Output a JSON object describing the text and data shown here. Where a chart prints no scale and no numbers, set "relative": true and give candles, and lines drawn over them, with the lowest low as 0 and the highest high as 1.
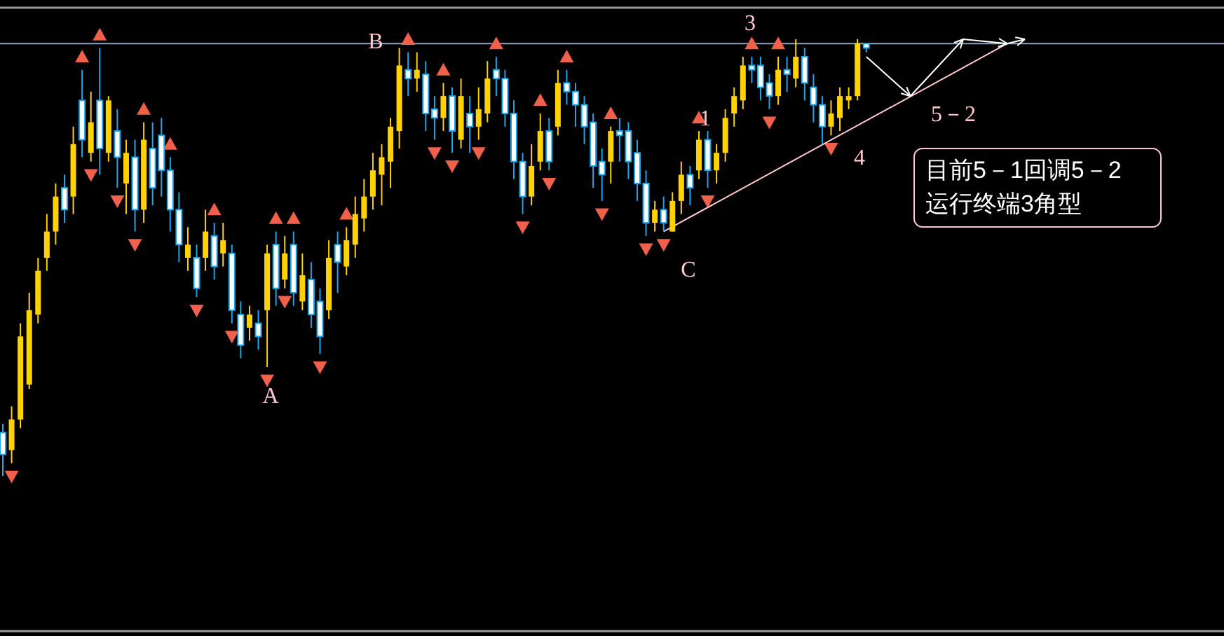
{
  "chart_data": {
    "type": "candlestick",
    "relative": true,
    "categories": [
      null,
      null,
      null,
      null,
      null,
      null,
      null,
      null,
      null,
      null,
      null,
      null,
      null,
      null,
      null,
      null,
      null,
      null,
      null,
      null,
      null,
      null,
      null,
      null,
      null,
      null,
      null,
      null,
      null,
      null,
      null,
      null,
      null,
      null,
      null,
      null,
      null,
      null,
      null,
      null,
      null,
      null,
      null,
      null,
      null,
      null,
      null,
      null,
      null,
      null,
      null,
      null,
      null,
      null,
      null,
      null,
      null,
      null,
      null,
      null,
      null,
      null,
      null,
      null,
      null,
      null,
      null,
      null,
      null,
      null,
      null,
      null,
      null,
      null,
      null,
      null,
      null,
      null,
      null,
      null,
      null,
      null,
      null,
      null,
      null,
      null,
      null,
      null,
      null,
      null,
      null,
      null,
      null,
      null,
      null,
      null,
      null,
      null,
      null,
      null,
      null,
      null,
      null,
      null,
      null,
      null,
      null,
      null,
      null,
      null,
      null,
      null,
      null,
      null,
      null,
      null,
      null
    ],
    "ohlc": [
      [
        0.1,
        0.12,
        0.0,
        0.05
      ],
      [
        0.06,
        0.16,
        0.03,
        0.13
      ],
      [
        0.13,
        0.35,
        0.11,
        0.32
      ],
      [
        0.21,
        0.42,
        0.2,
        0.38
      ],
      [
        0.37,
        0.5,
        0.35,
        0.47
      ],
      [
        0.5,
        0.6,
        0.47,
        0.56
      ],
      [
        0.56,
        0.67,
        0.53,
        0.64
      ],
      [
        0.66,
        0.69,
        0.58,
        0.61
      ],
      [
        0.64,
        0.8,
        0.6,
        0.76
      ],
      [
        0.86,
        0.93,
        0.73,
        0.77
      ],
      [
        0.74,
        0.88,
        0.72,
        0.81
      ],
      [
        0.86,
        0.98,
        0.69,
        0.75
      ],
      [
        0.74,
        0.87,
        0.72,
        0.86
      ],
      [
        0.79,
        0.84,
        0.66,
        0.73
      ],
      [
        0.67,
        0.77,
        0.6,
        0.74
      ],
      [
        0.73,
        0.77,
        0.56,
        0.61
      ],
      [
        0.61,
        0.81,
        0.58,
        0.77
      ],
      [
        0.75,
        0.81,
        0.62,
        0.66
      ],
      [
        0.78,
        0.82,
        0.64,
        0.7
      ],
      [
        0.7,
        0.73,
        0.56,
        0.61
      ],
      [
        0.61,
        0.65,
        0.49,
        0.53
      ],
      [
        0.5,
        0.57,
        0.47,
        0.53
      ],
      [
        0.5,
        0.53,
        0.41,
        0.43
      ],
      [
        0.5,
        0.61,
        0.47,
        0.56
      ],
      [
        0.55,
        0.58,
        0.45,
        0.48
      ],
      [
        0.51,
        0.58,
        0.48,
        0.54
      ],
      [
        0.51,
        0.53,
        0.35,
        0.38
      ],
      [
        0.37,
        0.4,
        0.27,
        0.3
      ],
      [
        0.34,
        0.39,
        0.31,
        0.37
      ],
      [
        0.35,
        0.38,
        0.29,
        0.32
      ],
      [
        0.38,
        0.53,
        0.25,
        0.51
      ],
      [
        0.53,
        0.56,
        0.39,
        0.43
      ],
      [
        0.45,
        0.55,
        0.43,
        0.51
      ],
      [
        0.53,
        0.56,
        0.39,
        0.42
      ],
      [
        0.4,
        0.51,
        0.38,
        0.46
      ],
      [
        0.45,
        0.49,
        0.34,
        0.37
      ],
      [
        0.4,
        0.43,
        0.28,
        0.32
      ],
      [
        0.38,
        0.54,
        0.36,
        0.5
      ],
      [
        0.53,
        0.56,
        0.42,
        0.49
      ],
      [
        0.48,
        0.57,
        0.46,
        0.54
      ],
      [
        0.53,
        0.64,
        0.5,
        0.6
      ],
      [
        0.59,
        0.68,
        0.56,
        0.64
      ],
      [
        0.64,
        0.74,
        0.61,
        0.7
      ],
      [
        0.69,
        0.76,
        0.62,
        0.73
      ],
      [
        0.72,
        0.82,
        0.66,
        0.8
      ],
      [
        0.79,
        0.98,
        0.75,
        0.94
      ],
      [
        0.93,
        0.97,
        0.87,
        0.91
      ],
      [
        0.91,
        0.97,
        0.88,
        0.93
      ],
      [
        0.92,
        0.95,
        0.79,
        0.83
      ],
      [
        0.84,
        0.87,
        0.77,
        0.82
      ],
      [
        0.82,
        0.9,
        0.79,
        0.87
      ],
      [
        0.87,
        0.89,
        0.74,
        0.79
      ],
      [
        0.77,
        0.91,
        0.75,
        0.87
      ],
      [
        0.83,
        0.87,
        0.74,
        0.8
      ],
      [
        0.8,
        0.89,
        0.77,
        0.84
      ],
      [
        0.83,
        0.95,
        0.81,
        0.91
      ],
      [
        0.93,
        0.96,
        0.87,
        0.91
      ],
      [
        0.91,
        0.93,
        0.8,
        0.83
      ],
      [
        0.83,
        0.86,
        0.68,
        0.72
      ],
      [
        0.72,
        0.74,
        0.6,
        0.64
      ],
      [
        0.64,
        0.76,
        0.62,
        0.71
      ],
      [
        0.72,
        0.83,
        0.7,
        0.79
      ],
      [
        0.79,
        0.82,
        0.7,
        0.72
      ],
      [
        0.8,
        0.93,
        0.78,
        0.9
      ],
      [
        0.9,
        0.93,
        0.85,
        0.88
      ],
      [
        0.88,
        0.9,
        0.8,
        0.85
      ],
      [
        0.85,
        0.87,
        0.76,
        0.8
      ],
      [
        0.81,
        0.83,
        0.66,
        0.71
      ],
      [
        0.72,
        0.75,
        0.63,
        0.69
      ],
      [
        0.72,
        0.8,
        0.67,
        0.79
      ],
      [
        0.79,
        0.82,
        0.72,
        0.78
      ],
      [
        0.79,
        0.81,
        0.68,
        0.72
      ],
      [
        0.74,
        0.77,
        0.63,
        0.67
      ],
      [
        0.67,
        0.7,
        0.55,
        0.58
      ],
      [
        0.58,
        0.63,
        0.56,
        0.61
      ],
      [
        0.61,
        0.64,
        0.56,
        0.58
      ],
      [
        0.56,
        0.65,
        0.56,
        0.63
      ],
      [
        0.63,
        0.72,
        0.6,
        0.69
      ],
      [
        0.69,
        0.71,
        0.62,
        0.66
      ],
      [
        0.7,
        0.79,
        0.68,
        0.77
      ],
      [
        0.77,
        0.79,
        0.66,
        0.7
      ],
      [
        0.7,
        0.76,
        0.67,
        0.74
      ],
      [
        0.74,
        0.84,
        0.72,
        0.82
      ],
      [
        0.83,
        0.89,
        0.8,
        0.87
      ],
      [
        0.86,
        0.96,
        0.84,
        0.94
      ],
      [
        0.94,
        0.96,
        0.9,
        0.93
      ],
      [
        0.94,
        0.96,
        0.86,
        0.89
      ],
      [
        0.9,
        0.92,
        0.84,
        0.87
      ],
      [
        0.87,
        0.96,
        0.85,
        0.93
      ],
      [
        0.93,
        0.96,
        0.88,
        0.92
      ],
      [
        0.91,
        1.0,
        0.89,
        0.96
      ],
      [
        0.96,
        0.98,
        0.86,
        0.9
      ],
      [
        0.89,
        0.92,
        0.81,
        0.85
      ],
      [
        0.85,
        0.87,
        0.76,
        0.8
      ],
      [
        0.8,
        0.86,
        0.78,
        0.83
      ],
      [
        0.82,
        0.89,
        0.79,
        0.87
      ],
      [
        0.86,
        0.89,
        0.84,
        0.87
      ],
      [
        0.87,
        1.0,
        0.86,
        0.99
      ],
      [
        0.99,
        0.99,
        0.97,
        0.98
      ],
      null,
      null,
      null,
      null,
      null,
      null,
      null,
      null,
      null,
      null,
      null,
      null,
      null,
      null,
      null,
      null,
      null,
      null
    ],
    "series": [
      {
        "type": "scatter",
        "marker": "triangle",
        "color": "#f0604a",
        "values": [
          null,
          null,
          null,
          null,
          null,
          null,
          null,
          null,
          null,
          0.96,
          null,
          1.01,
          null,
          null,
          null,
          null,
          0.84,
          null,
          null,
          0.76,
          null,
          null,
          null,
          null,
          0.61,
          null,
          null,
          null,
          null,
          null,
          null,
          0.59,
          null,
          0.59,
          null,
          null,
          null,
          null,
          null,
          0.6,
          null,
          null,
          null,
          null,
          null,
          null,
          1.0,
          null,
          null,
          null,
          0.93,
          null,
          null,
          null,
          null,
          null,
          0.99,
          null,
          null,
          null,
          null,
          0.86,
          null,
          null,
          0.96,
          null,
          null,
          null,
          null,
          0.83,
          null,
          null,
          null,
          null,
          null,
          null,
          null,
          null,
          null,
          0.82,
          null,
          null,
          null,
          null,
          null,
          0.99,
          null,
          null,
          0.99,
          null,
          null,
          null,
          null,
          null,
          null,
          null,
          null,
          null,
          null,
          null,
          null,
          null,
          null,
          null,
          null,
          null,
          null,
          null,
          null,
          null,
          null,
          null,
          null,
          null,
          null,
          null,
          null
        ]
      },
      {
        "type": "scatter",
        "marker": "triangle-down",
        "color": "#f0604a",
        "values": [
          null,
          0.0,
          null,
          null,
          null,
          null,
          null,
          null,
          null,
          null,
          0.69,
          null,
          null,
          0.63,
          null,
          0.53,
          null,
          null,
          null,
          null,
          null,
          null,
          0.38,
          null,
          null,
          null,
          0.32,
          null,
          null,
          null,
          0.22,
          null,
          0.4,
          null,
          null,
          null,
          0.25,
          null,
          null,
          null,
          null,
          null,
          null,
          null,
          null,
          null,
          null,
          null,
          null,
          0.74,
          null,
          0.71,
          null,
          null,
          0.74,
          null,
          null,
          null,
          null,
          0.57,
          null,
          null,
          0.67,
          null,
          null,
          null,
          null,
          null,
          0.6,
          null,
          null,
          null,
          null,
          0.52,
          null,
          0.53,
          null,
          null,
          null,
          null,
          0.63,
          null,
          null,
          null,
          null,
          null,
          null,
          0.81,
          null,
          null,
          null,
          null,
          null,
          null,
          0.75,
          null,
          null,
          null,
          null,
          null,
          null,
          null,
          null,
          null,
          null,
          null,
          null,
          null,
          null,
          null,
          null,
          null,
          null,
          null,
          null,
          null,
          null
        ]
      },
      {
        "type": "line",
        "color": "#ffc8d0",
        "values": [
          null,
          null,
          null,
          null,
          null,
          null,
          null,
          null,
          null,
          null,
          null,
          null,
          null,
          null,
          null,
          null,
          null,
          null,
          null,
          null,
          null,
          null,
          null,
          null,
          null,
          null,
          null,
          null,
          null,
          null,
          null,
          null,
          null,
          null,
          null,
          null,
          null,
          null,
          null,
          null,
          null,
          null,
          null,
          null,
          null,
          null,
          null,
          null,
          null,
          null,
          null,
          null,
          null,
          null,
          null,
          null,
          null,
          null,
          null,
          null,
          null,
          null,
          null,
          null,
          null,
          null,
          null,
          null,
          null,
          null,
          null,
          null,
          null,
          null,
          null,
          0.56,
          null,
          null,
          null,
          null,
          null,
          null,
          null,
          null,
          null,
          null,
          null,
          null,
          null,
          null,
          null,
          null,
          null,
          null,
          null,
          null,
          null,
          null,
          null,
          null,
          null,
          null,
          null,
          null,
          null,
          null,
          null,
          null,
          null,
          null,
          null,
          null,
          null,
          null,
          0.99,
          null,
          null
        ]
      },
      {
        "type": "line",
        "color": "#ffffff",
        "values": [
          null,
          null,
          null,
          null,
          null,
          null,
          null,
          null,
          null,
          null,
          null,
          null,
          null,
          null,
          null,
          null,
          null,
          null,
          null,
          null,
          null,
          null,
          null,
          null,
          null,
          null,
          null,
          null,
          null,
          null,
          null,
          null,
          null,
          null,
          null,
          null,
          null,
          null,
          null,
          null,
          null,
          null,
          null,
          null,
          null,
          null,
          null,
          null,
          null,
          null,
          null,
          null,
          null,
          null,
          null,
          null,
          null,
          null,
          null,
          null,
          null,
          null,
          null,
          null,
          null,
          null,
          null,
          null,
          null,
          null,
          null,
          null,
          null,
          null,
          null,
          null,
          null,
          null,
          null,
          null,
          null,
          null,
          null,
          null,
          null,
          null,
          null,
          null,
          null,
          null,
          null,
          null,
          null,
          null,
          null,
          null,
          null,
          null,
          0.96,
          null,
          null,
          null,
          null,
          0.87,
          null,
          null,
          null,
          null,
          null,
          1.0,
          null,
          null,
          null,
          null,
          0.99,
          null,
          1.0
        ]
      }
    ],
    "ref_lines": [
      {
        "axis": "y",
        "value": 0.99,
        "color": "#8fa3bf"
      }
    ],
    "annotations": [
      "A",
      "B",
      "C",
      "1",
      "3",
      "4",
      "5－2",
      "目前5－1回调5－2\n运行终端3角型"
    ]
  }
}
